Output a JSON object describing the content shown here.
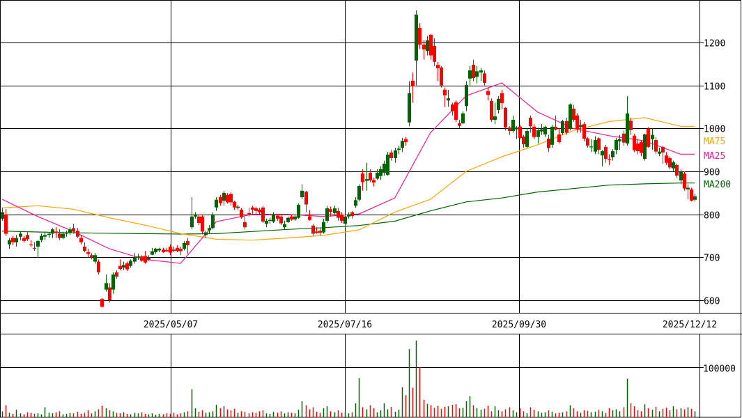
{
  "chart_data": {
    "type": "candlestick",
    "up_color": "#006400",
    "down_color": "#ff0000",
    "price_axis": {
      "ticks": [
        600,
        700,
        800,
        900,
        1000,
        1100,
        1200
      ],
      "labels": [
        "600",
        "700",
        "800",
        "900",
        "1000",
        "1100",
        "1200"
      ],
      "ylim": [
        560,
        1300
      ],
      "grid": true,
      "position": "right"
    },
    "date_labels": [
      "2025/05/07",
      "2025/07/16",
      "2025/09/30",
      "2025/12/12"
    ],
    "volume_axis": {
      "ticks": [
        100000
      ],
      "labels": [
        "100000"
      ],
      "ylim": [
        0,
        165000
      ]
    },
    "legend": [
      {
        "name": "MA75",
        "color": "#ffa500"
      },
      {
        "name": "MA25",
        "color": "#ff1493"
      },
      {
        "name": "MA200",
        "color": "#006400"
      }
    ],
    "ohlc": [
      [
        790,
        815,
        785,
        805
      ],
      [
        800,
        812,
        750,
        755
      ],
      [
        730,
        745,
        720,
        740
      ],
      [
        745,
        750,
        728,
        735
      ],
      [
        735,
        752,
        725,
        745
      ],
      [
        748,
        760,
        740,
        755
      ],
      [
        745,
        750,
        735,
        738
      ],
      [
        752,
        760,
        738,
        742
      ],
      [
        730,
        740,
        725,
        728
      ],
      [
        722,
        735,
        715,
        720
      ],
      [
        725,
        740,
        700,
        738
      ],
      [
        740,
        755,
        735,
        750
      ],
      [
        748,
        760,
        740,
        752
      ],
      [
        752,
        758,
        745,
        755
      ],
      [
        755,
        768,
        745,
        765
      ],
      [
        760,
        770,
        745,
        757
      ],
      [
        755,
        765,
        740,
        745
      ],
      [
        745,
        760,
        742,
        755
      ],
      [
        755,
        762,
        748,
        758
      ],
      [
        758,
        770,
        752,
        765
      ],
      [
        768,
        778,
        755,
        760
      ],
      [
        762,
        768,
        745,
        748
      ],
      [
        745,
        752,
        730,
        735
      ],
      [
        725,
        735,
        712,
        715
      ],
      [
        712,
        720,
        700,
        708
      ],
      [
        705,
        710,
        695,
        700
      ],
      [
        690,
        710,
        685,
        705
      ],
      [
        690,
        695,
        660,
        665
      ],
      [
        603,
        605,
        583,
        585
      ],
      [
        625,
        660,
        620,
        640
      ],
      [
        630,
        640,
        595,
        600
      ],
      [
        625,
        665,
        615,
        660
      ],
      [
        665,
        670,
        650,
        655
      ],
      [
        680,
        695,
        670,
        673
      ],
      [
        676,
        690,
        670,
        682
      ],
      [
        686,
        690,
        668,
        672
      ],
      [
        680,
        695,
        676,
        692
      ],
      [
        690,
        710,
        685,
        700
      ],
      [
        700,
        708,
        694,
        702
      ],
      [
        702,
        705,
        690,
        692
      ],
      [
        703,
        715,
        685,
        688
      ],
      [
        695,
        705,
        692,
        700
      ],
      [
        706,
        722,
        705,
        714
      ],
      [
        712,
        722,
        708,
        720
      ],
      [
        716,
        722,
        712,
        720
      ],
      [
        718,
        722,
        710,
        712
      ],
      [
        717,
        722,
        712,
        714
      ],
      [
        725,
        730,
        705,
        711
      ],
      [
        718,
        725,
        712,
        715
      ],
      [
        722,
        728,
        712,
        715
      ],
      [
        720,
        725,
        705,
        714
      ],
      [
        720,
        738,
        716,
        733
      ],
      [
        738,
        745,
        708,
        728
      ],
      [
        770,
        840,
        765,
        795
      ],
      [
        795,
        805,
        790,
        800
      ],
      [
        795,
        800,
        775,
        780
      ],
      [
        795,
        800,
        755,
        760
      ],
      [
        752,
        762,
        745,
        758
      ],
      [
        763,
        775,
        755,
        768
      ],
      [
        768,
        805,
        765,
        800
      ],
      [
        816,
        840,
        808,
        834
      ],
      [
        840,
        845,
        820,
        826
      ],
      [
        832,
        855,
        820,
        850
      ],
      [
        845,
        850,
        825,
        828
      ],
      [
        848,
        852,
        820,
        828
      ],
      [
        829,
        832,
        810,
        816
      ],
      [
        815,
        822,
        810,
        818
      ],
      [
        811,
        815,
        790,
        793
      ],
      [
        782,
        795,
        765,
        770
      ],
      [
        803,
        815,
        795,
        800
      ],
      [
        816,
        820,
        800,
        811
      ],
      [
        814,
        818,
        800,
        808
      ],
      [
        811,
        815,
        800,
        805
      ],
      [
        816,
        820,
        780,
        783
      ],
      [
        778,
        790,
        770,
        785
      ],
      [
        785,
        792,
        778,
        787
      ],
      [
        783,
        805,
        780,
        800
      ],
      [
        797,
        800,
        785,
        790
      ],
      [
        795,
        800,
        775,
        779
      ],
      [
        770,
        785,
        765,
        777
      ],
      [
        782,
        795,
        780,
        792
      ],
      [
        795,
        800,
        785,
        788
      ],
      [
        788,
        800,
        785,
        795
      ],
      [
        792,
        825,
        790,
        822
      ],
      [
        840,
        870,
        835,
        855
      ],
      [
        853,
        855,
        805,
        823
      ],
      [
        795,
        810,
        785,
        787
      ],
      [
        774,
        778,
        750,
        755
      ],
      [
        760,
        770,
        755,
        757
      ],
      [
        762,
        768,
        750,
        757
      ],
      [
        758,
        790,
        755,
        782
      ],
      [
        785,
        820,
        780,
        814
      ],
      [
        812,
        818,
        795,
        806
      ],
      [
        803,
        820,
        800,
        814
      ],
      [
        808,
        815,
        785,
        792
      ],
      [
        798,
        805,
        780,
        785
      ],
      [
        778,
        800,
        770,
        795
      ],
      [
        795,
        805,
        790,
        800
      ],
      [
        805,
        808,
        790,
        796
      ],
      [
        820,
        840,
        815,
        833
      ],
      [
        834,
        870,
        830,
        866
      ],
      [
        895,
        905,
        855,
        875
      ],
      [
        878,
        920,
        855,
        882
      ],
      [
        897,
        905,
        875,
        879
      ],
      [
        880,
        885,
        865,
        874
      ],
      [
        883,
        905,
        880,
        897
      ],
      [
        889,
        912,
        880,
        905
      ],
      [
        897,
        925,
        890,
        918
      ],
      [
        892,
        945,
        890,
        939
      ],
      [
        944,
        950,
        925,
        931
      ],
      [
        931,
        955,
        920,
        949
      ],
      [
        950,
        960,
        940,
        953
      ],
      [
        955,
        978,
        945,
        971
      ],
      [
        975,
        980,
        960,
        968
      ],
      [
        1014,
        1110,
        1005,
        1082
      ],
      [
        1111,
        1130,
        1060,
        1098
      ],
      [
        1158,
        1275,
        1100,
        1265
      ],
      [
        1234,
        1245,
        1185,
        1195
      ],
      [
        1195,
        1205,
        1160,
        1184
      ],
      [
        1180,
        1215,
        1170,
        1205
      ],
      [
        1218,
        1220,
        1160,
        1170
      ],
      [
        1192,
        1210,
        1145,
        1155
      ],
      [
        1148,
        1155,
        1110,
        1140
      ],
      [
        1142,
        1145,
        1095,
        1100
      ],
      [
        1090,
        1095,
        1050,
        1077
      ],
      [
        1065,
        1090,
        1050,
        1070
      ],
      [
        1056,
        1060,
        1030,
        1040
      ],
      [
        1061,
        1065,
        1015,
        1020
      ],
      [
        1012,
        1020,
        1000,
        1006
      ],
      [
        1012,
        1040,
        1010,
        1035
      ],
      [
        1052,
        1110,
        1040,
        1101
      ],
      [
        1116,
        1145,
        1100,
        1135
      ],
      [
        1148,
        1160,
        1110,
        1117
      ],
      [
        1120,
        1145,
        1105,
        1133
      ],
      [
        1130,
        1140,
        1110,
        1135
      ],
      [
        1128,
        1135,
        1100,
        1106
      ],
      [
        1087,
        1095,
        1065,
        1078
      ],
      [
        1064,
        1070,
        1015,
        1020
      ],
      [
        1020,
        1060,
        1010,
        1028
      ],
      [
        1043,
        1075,
        1035,
        1069
      ],
      [
        1082,
        1090,
        1045,
        1059
      ],
      [
        1048,
        1050,
        995,
        1002
      ],
      [
        1002,
        1005,
        985,
        994
      ],
      [
        994,
        1030,
        990,
        1020
      ],
      [
        998,
        1005,
        975,
        1002
      ],
      [
        1004,
        1008,
        975,
        978
      ],
      [
        981,
        985,
        955,
        963
      ],
      [
        957,
        1000,
        955,
        994
      ],
      [
        1025,
        1030,
        990,
        1005
      ],
      [
        1004,
        1010,
        975,
        980
      ],
      [
        980,
        1002,
        965,
        996
      ],
      [
        993,
        1010,
        985,
        998
      ],
      [
        986,
        1006,
        980,
        1004
      ],
      [
        976,
        985,
        945,
        954
      ],
      [
        962,
        1008,
        955,
        1004
      ],
      [
        1004,
        1030,
        995,
        997
      ],
      [
        986,
        1000,
        965,
        968
      ],
      [
        989,
        1020,
        985,
        1017
      ],
      [
        1017,
        1025,
        985,
        990
      ],
      [
        999,
        1058,
        995,
        1056
      ],
      [
        1046,
        1055,
        1015,
        1020
      ],
      [
        1030,
        1035,
        990,
        999
      ],
      [
        1003,
        1020,
        990,
        1008
      ],
      [
        1010,
        1015,
        970,
        976
      ],
      [
        977,
        980,
        955,
        960
      ],
      [
        956,
        975,
        945,
        958
      ],
      [
        946,
        982,
        940,
        973
      ],
      [
        977,
        980,
        940,
        950
      ],
      [
        937,
        950,
        912,
        947
      ],
      [
        957,
        962,
        920,
        929
      ],
      [
        929,
        940,
        915,
        927
      ],
      [
        933,
        952,
        925,
        947
      ],
      [
        950,
        978,
        940,
        973
      ],
      [
        970,
        985,
        950,
        975
      ],
      [
        988,
        995,
        960,
        967
      ],
      [
        965,
        1075,
        960,
        1035
      ],
      [
        1018,
        1025,
        985,
        996
      ],
      [
        983,
        988,
        945,
        949
      ],
      [
        965,
        975,
        940,
        947
      ],
      [
        968,
        972,
        935,
        943
      ],
      [
        929,
        988,
        925,
        986
      ],
      [
        999,
        1003,
        955,
        957
      ],
      [
        975,
        1000,
        950,
        985
      ],
      [
        973,
        980,
        940,
        946
      ],
      [
        941,
        955,
        935,
        946
      ],
      [
        957,
        960,
        918,
        944
      ],
      [
        937,
        945,
        915,
        920
      ],
      [
        931,
        935,
        905,
        909
      ],
      [
        907,
        925,
        900,
        921
      ],
      [
        915,
        918,
        885,
        890
      ],
      [
        879,
        905,
        870,
        899
      ],
      [
        895,
        900,
        855,
        860
      ],
      [
        858,
        870,
        835,
        862
      ],
      [
        858,
        862,
        830,
        832
      ],
      [
        834,
        848,
        830,
        842
      ]
    ],
    "volume": [
      12000,
      24000,
      9000,
      7000,
      15000,
      8000,
      6000,
      10000,
      9000,
      7000,
      8000,
      6000,
      20000,
      9000,
      8000,
      10000,
      12000,
      6000,
      7000,
      9000,
      8000,
      11000,
      7000,
      9000,
      14000,
      8000,
      12000,
      16000,
      23000,
      18000,
      14000,
      12000,
      9000,
      8000,
      10000,
      7000,
      6000,
      9000,
      8000,
      10000,
      7000,
      6000,
      8000,
      5000,
      7000,
      6000,
      8000,
      7000,
      9000,
      6000,
      8000,
      10000,
      12000,
      56000,
      18000,
      11000,
      14000,
      9000,
      10000,
      12000,
      25000,
      18000,
      22000,
      16000,
      14000,
      17000,
      9000,
      12000,
      11000,
      8000,
      10000,
      9000,
      12000,
      14000,
      8000,
      7000,
      11000,
      9000,
      12000,
      8000,
      10000,
      9000,
      8000,
      15000,
      32000,
      24000,
      16000,
      20000,
      11000,
      9000,
      18000,
      22000,
      12000,
      10000,
      14000,
      9000,
      11000,
      8000,
      10000,
      28000,
      78000,
      20000,
      16000,
      24000,
      18000,
      10000,
      14000,
      28000,
      16000,
      21000,
      11000,
      15000,
      60000,
      44000,
      136000,
      59000,
      153000,
      100000,
      35000,
      27000,
      24000,
      19000,
      23000,
      17000,
      21000,
      22000,
      25000,
      26000,
      18000,
      19000,
      32000,
      42000,
      24000,
      18000,
      15000,
      17000,
      23000,
      12000,
      22000,
      14000,
      12000,
      16000,
      20000,
      14000,
      10000,
      18000,
      12000,
      8000,
      20000,
      15000,
      12000,
      9000,
      10000,
      14000,
      11000,
      8000,
      9000,
      10000,
      12000,
      24000,
      18000,
      12000,
      9000,
      14000,
      13000,
      10000,
      11000,
      15000,
      12000,
      9000,
      18000,
      14000,
      16000,
      12000,
      20000,
      77000,
      28000,
      22000,
      14000,
      12000,
      26000,
      18000,
      15000,
      21000,
      12000,
      17000,
      19000,
      14000,
      22000,
      16000,
      18000,
      16000,
      20000,
      17000,
      12000
    ],
    "moving_averages": {
      "sample_every_n_bars": 10,
      "MA25": [
        835,
        795,
        760,
        720,
        695,
        686,
        783,
        800,
        800,
        795,
        801,
        838,
        990,
        1076,
        1106,
        1038,
        1000,
        983,
        971,
        940
      ],
      "MA75": [
        815,
        820,
        812,
        792,
        775,
        755,
        742,
        740,
        745,
        751,
        764,
        805,
        835,
        900,
        934,
        962,
        995,
        1016,
        1025,
        1005
      ],
      "MA200": [
        761,
        759,
        757,
        756,
        755,
        754,
        755,
        760,
        765,
        769,
        774,
        784,
        808,
        829,
        838,
        852,
        860,
        868,
        871,
        873
      ]
    }
  }
}
